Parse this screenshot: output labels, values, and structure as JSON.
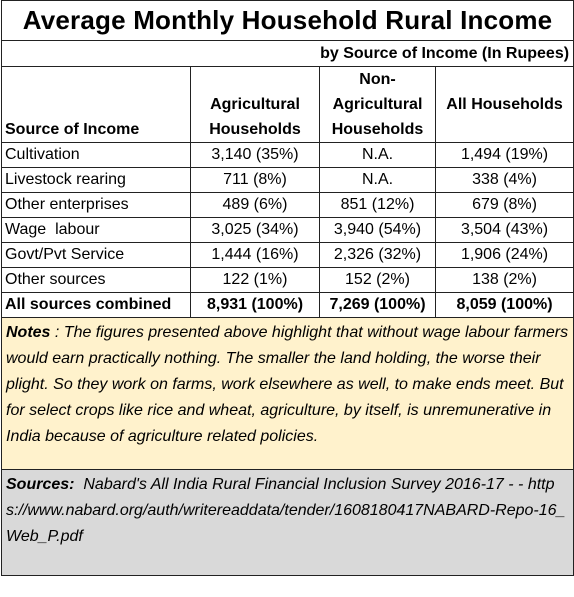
{
  "title": "Average Monthly Household Rural  Income",
  "subtitle": "by Source of Income (In Rupees)",
  "headers": {
    "source": "Source of Income",
    "agri": [
      "Agricultural",
      "Households"
    ],
    "nonagri": [
      "Non-",
      "Agricultural",
      "Households"
    ],
    "all": "All Households"
  },
  "rows": [
    {
      "source": "Cultivation",
      "agri": "3,140 (35%)",
      "nonagri": "N.A.",
      "all": "1,494 (19%)"
    },
    {
      "source": "Livestock rearing",
      "agri": "711 (8%)",
      "nonagri": "N.A.",
      "all": "338 (4%)"
    },
    {
      "source": "Other enterprises",
      "agri": "489 (6%)",
      "nonagri": "851 (12%)",
      "all": "679 (8%)"
    },
    {
      "source": "Wage  labour",
      "agri": "3,025 (34%)",
      "nonagri": "3,940 (54%)",
      "all": "3,504 (43%)"
    },
    {
      "source": "Govt/Pvt Service",
      "agri": "1,444 (16%)",
      "nonagri": "2,326 (32%)",
      "all": "1,906 (24%)"
    },
    {
      "source": "Other sources",
      "agri": "122 (1%)",
      "nonagri": "152 (2%)",
      "all": "138 (2%)"
    }
  ],
  "total": {
    "source": "All sources combined",
    "agri": "8,931 (100%)",
    "nonagri": "7,269 (100%)",
    "all": "8,059 (100%)"
  },
  "notes": {
    "label": "Notes",
    "text": " : The figures presented above highlight that without wage labour farmers would earn practically nothing. The smaller the land holding, the worse their plight. So they work on farms, work elsewhere as well, to make ends meet. But for select crops like rice and wheat, agriculture, by itself, is unremunerative in India because of agriculture related policies."
  },
  "sources": {
    "label": "Sources:",
    "text": "  Nabard's All India Rural Financial Inclusion Survey 2016-17 - -",
    "url": "https://www.nabard.org/auth/writereaddata/tender/1608180417NABARD-Repo-16_Web_P.pdf"
  },
  "colors": {
    "notes_bg": "#fff2cc",
    "sources_bg": "#d9d9d9",
    "border": "#222222"
  }
}
